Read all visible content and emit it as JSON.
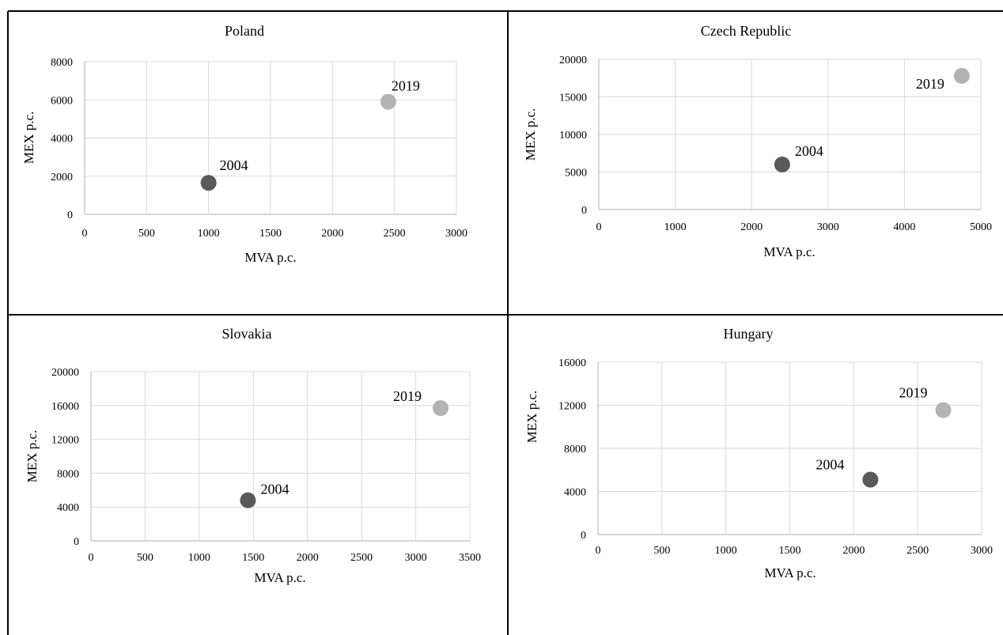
{
  "chart_data": [
    {
      "type": "scatter",
      "title": "Poland",
      "xlabel": "MVA p.c.",
      "ylabel": "MEX p.c.",
      "xlim": [
        0,
        3000
      ],
      "ylim": [
        0,
        8000
      ],
      "xticks": [
        "0",
        "500",
        "1000",
        "1500",
        "2000",
        "2500",
        "3000"
      ],
      "yticks": [
        "0",
        "2000",
        "4000",
        "6000",
        "8000"
      ],
      "grid": true,
      "points": [
        {
          "label": "2004",
          "x": 1000,
          "y": 1650,
          "color": "#595959"
        },
        {
          "label": "2019",
          "x": 2450,
          "y": 5900,
          "color": "#b3b3b3"
        }
      ]
    },
    {
      "type": "scatter",
      "title": "Czech Republic",
      "xlabel": "MVA p.c.",
      "ylabel": "MEX p.c.",
      "xlim": [
        0,
        5000
      ],
      "ylim": [
        0,
        20000
      ],
      "xticks": [
        "0",
        "1000",
        "2000",
        "3000",
        "4000",
        "5000"
      ],
      "yticks": [
        "0",
        "5000",
        "10000",
        "15000",
        "20000"
      ],
      "grid": true,
      "points": [
        {
          "label": "2004",
          "x": 2400,
          "y": 6000,
          "color": "#595959"
        },
        {
          "label": "2019",
          "x": 4750,
          "y": 17800,
          "color": "#b3b3b3"
        }
      ]
    },
    {
      "type": "scatter",
      "title": "Slovakia",
      "xlabel": "MVA p.c.",
      "ylabel": "MEX p.c.",
      "xlim": [
        0,
        3500
      ],
      "ylim": [
        0,
        20000
      ],
      "xticks": [
        "0",
        "500",
        "1000",
        "1500",
        "2000",
        "2500",
        "3000",
        "3500"
      ],
      "yticks": [
        "0",
        "4000",
        "8000",
        "12000",
        "16000",
        "20000"
      ],
      "grid": true,
      "points": [
        {
          "label": "2004",
          "x": 1450,
          "y": 4800,
          "color": "#595959"
        },
        {
          "label": "2019",
          "x": 3230,
          "y": 15700,
          "color": "#b3b3b3"
        }
      ]
    },
    {
      "type": "scatter",
      "title": "Hungary",
      "xlabel": "MVA p.c.",
      "ylabel": "MEX p.c.",
      "xlim": [
        0,
        3000
      ],
      "ylim": [
        0,
        16000
      ],
      "xticks": [
        "0",
        "500",
        "1000",
        "1500",
        "2000",
        "2500",
        "3000"
      ],
      "yticks": [
        "0",
        "4000",
        "8000",
        "12000",
        "16000"
      ],
      "grid": true,
      "points": [
        {
          "label": "2004",
          "x": 2130,
          "y": 5100,
          "color": "#595959"
        },
        {
          "label": "2019",
          "x": 2700,
          "y": 11550,
          "color": "#b3b3b3"
        }
      ]
    }
  ]
}
